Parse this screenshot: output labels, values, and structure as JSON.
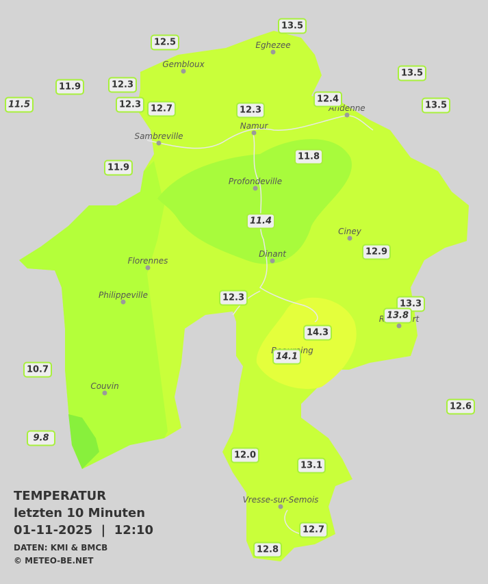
{
  "title": "TEMPERATUR",
  "subtitle": "letzten 10 Minuten",
  "datetime": "01-11-2025  |  12:10",
  "source": "DATEN: KMI & BMCB",
  "copyright": "© METEO-BE.NET",
  "towns": [
    "Eghezee",
    "Gembloux",
    "Andenne",
    "Namur",
    "Sambreville",
    "Profondeville",
    "Ciney",
    "Florennes",
    "Dinant",
    "Philippeville",
    "Couvin",
    "Vresse-sur-Semois",
    "Rochefort",
    "Beauraing"
  ],
  "stations": [
    {
      "label": "13.5"
    },
    {
      "label": "12.5"
    },
    {
      "label": "11.9"
    },
    {
      "label": "12.3"
    },
    {
      "label": "11.5",
      "italic": true
    },
    {
      "label": "12.3"
    },
    {
      "label": "12.7"
    },
    {
      "label": "12.3"
    },
    {
      "label": "12.4"
    },
    {
      "label": "13.5"
    },
    {
      "label": "13.5"
    },
    {
      "label": "11.9"
    },
    {
      "label": "11.8"
    },
    {
      "label": "11.4",
      "italic": true
    },
    {
      "label": "12.9"
    },
    {
      "label": "12.3"
    },
    {
      "label": "13.3"
    },
    {
      "label": "13.8",
      "italic": true
    },
    {
      "label": "14.3"
    },
    {
      "label": "14.1",
      "italic": true
    },
    {
      "label": "10.7"
    },
    {
      "label": "12.6"
    },
    {
      "label": "9.8",
      "italic": true
    },
    {
      "label": "12.0"
    },
    {
      "label": "13.1"
    },
    {
      "label": "12.7"
    },
    {
      "label": "12.8"
    }
  ]
}
